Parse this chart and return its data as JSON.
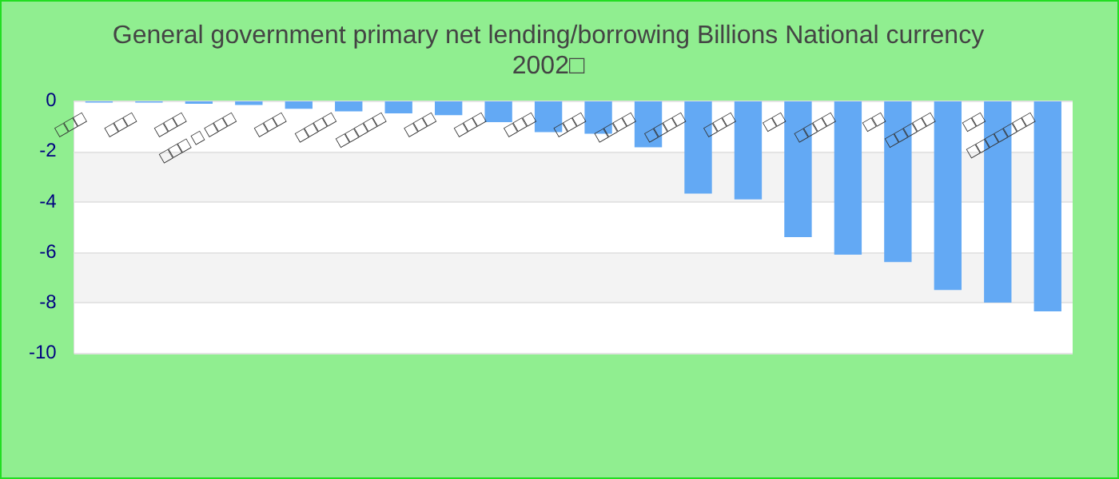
{
  "chart_data": {
    "type": "bar",
    "title": "General government primary net lending/borrowing Billions National currency 2002□",
    "categories": [
      "□□□",
      "□□□",
      "□□□",
      "□□□ □ □□□",
      "□□□",
      "□□□□",
      "□□□□□",
      "□□□",
      "□□□",
      "□□□",
      "□□□",
      "□□□□",
      "□□□□",
      "□□□",
      "□□",
      "□□□□",
      "□□",
      "□□□□□",
      "□□",
      "□□□□□□□"
    ],
    "values": [
      -0.05,
      -0.05,
      -0.1,
      -0.15,
      -0.3,
      -0.4,
      -0.48,
      -0.55,
      -0.83,
      -1.23,
      -1.29,
      -1.83,
      -3.67,
      -3.9,
      -5.4,
      -6.1,
      -6.39,
      -7.5,
      -8.0,
      -8.35
    ],
    "color": "#63a9f4",
    "ylim": [
      -10,
      0
    ],
    "yticks": [
      -10,
      -8,
      -6,
      -4,
      -2,
      0
    ],
    "grid": true
  }
}
